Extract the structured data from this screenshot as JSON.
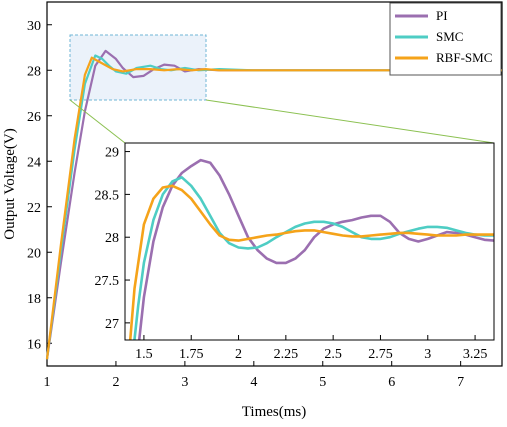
{
  "chart_data": {
    "type": "line",
    "xlabel": "Times(ms)",
    "ylabel": "Output Voltage(V)",
    "xlim": [
      1,
      7.6
    ],
    "ylim": [
      15,
      31
    ],
    "xticks": [
      "1",
      "2",
      "3",
      "4",
      "5",
      "6",
      "7"
    ],
    "yticks": [
      "16",
      "18",
      "20",
      "22",
      "24",
      "26",
      "28",
      "30"
    ],
    "legend_position": "top-right",
    "grid": false,
    "series": [
      {
        "name": "PI",
        "color": "#9b6fb0",
        "x": [
          1.0,
          1.2,
          1.4,
          1.55,
          1.7,
          1.85,
          2.0,
          2.1,
          2.25,
          2.4,
          2.55,
          2.7,
          2.85,
          3.0,
          3.2,
          3.5,
          4.0,
          5.0,
          6.0,
          7.0,
          7.6
        ],
        "y": [
          15.3,
          19.5,
          23.5,
          26.2,
          28.2,
          28.85,
          28.5,
          28.1,
          27.7,
          27.75,
          28.05,
          28.25,
          28.2,
          27.95,
          28.05,
          28.0,
          28.0,
          28.0,
          28.0,
          28.0,
          28.0
        ]
      },
      {
        "name": "SMC",
        "color": "#4ecdc4",
        "x": [
          1.0,
          1.2,
          1.4,
          1.55,
          1.7,
          1.8,
          1.9,
          2.0,
          2.15,
          2.3,
          2.5,
          2.65,
          2.8,
          3.0,
          3.2,
          3.5,
          4.0,
          5.0,
          6.0,
          7.0,
          7.6
        ],
        "y": [
          15.3,
          20.0,
          24.5,
          27.4,
          28.65,
          28.5,
          28.2,
          27.95,
          27.85,
          28.1,
          28.2,
          28.05,
          28.0,
          28.1,
          28.0,
          28.05,
          28.0,
          28.0,
          28.0,
          28.0,
          28.0
        ]
      },
      {
        "name": "RBF-SMC",
        "color": "#f5a31a",
        "x": [
          1.0,
          1.2,
          1.4,
          1.55,
          1.65,
          1.8,
          1.95,
          2.1,
          2.3,
          2.5,
          2.7,
          2.9,
          3.1,
          3.3,
          3.5,
          4.0,
          5.0,
          6.0,
          7.0,
          7.6
        ],
        "y": [
          15.3,
          20.3,
          25.0,
          27.8,
          28.55,
          28.3,
          28.05,
          27.95,
          28.05,
          28.05,
          28.0,
          28.05,
          28.0,
          28.05,
          28.0,
          28.0,
          28.0,
          28.0,
          28.0,
          28.0
        ]
      }
    ],
    "inset": {
      "xlim": [
        1.4,
        3.35
      ],
      "ylim": [
        26.8,
        29.1
      ],
      "xticks": [
        "1.5",
        "1.75",
        "2",
        "2.25",
        "2.5",
        "2.75",
        "3",
        "3.25"
      ],
      "yticks": [
        "27",
        "27.5",
        "28",
        "28.5",
        "29"
      ],
      "series": [
        {
          "name": "PI",
          "x": [
            1.45,
            1.5,
            1.55,
            1.6,
            1.65,
            1.7,
            1.75,
            1.8,
            1.85,
            1.9,
            1.95,
            2.0,
            2.05,
            2.1,
            2.15,
            2.2,
            2.25,
            2.3,
            2.35,
            2.4,
            2.45,
            2.5,
            2.55,
            2.6,
            2.65,
            2.7,
            2.75,
            2.8,
            2.85,
            2.9,
            2.95,
            3.0,
            3.05,
            3.1,
            3.15,
            3.2,
            3.25,
            3.3,
            3.35
          ],
          "y": [
            26.3,
            27.3,
            27.95,
            28.35,
            28.6,
            28.75,
            28.83,
            28.9,
            28.87,
            28.72,
            28.5,
            28.25,
            28.0,
            27.85,
            27.75,
            27.7,
            27.7,
            27.75,
            27.85,
            28.0,
            28.1,
            28.15,
            28.18,
            28.2,
            28.23,
            28.25,
            28.25,
            28.18,
            28.05,
            27.98,
            27.95,
            27.98,
            28.02,
            28.06,
            28.05,
            28.03,
            28.0,
            27.97,
            27.96
          ]
        },
        {
          "name": "SMC",
          "x": [
            1.43,
            1.47,
            1.5,
            1.55,
            1.6,
            1.65,
            1.7,
            1.75,
            1.8,
            1.85,
            1.9,
            1.95,
            2.0,
            2.05,
            2.1,
            2.15,
            2.2,
            2.25,
            2.3,
            2.35,
            2.4,
            2.45,
            2.5,
            2.55,
            2.6,
            2.65,
            2.7,
            2.75,
            2.8,
            2.85,
            2.9,
            2.95,
            3.0,
            3.05,
            3.1,
            3.15,
            3.2,
            3.25,
            3.3,
            3.35
          ],
          "y": [
            26.4,
            27.2,
            27.7,
            28.2,
            28.5,
            28.65,
            28.7,
            28.6,
            28.45,
            28.25,
            28.05,
            27.93,
            27.88,
            27.87,
            27.88,
            27.93,
            28.0,
            28.06,
            28.12,
            28.16,
            28.18,
            28.18,
            28.16,
            28.12,
            28.06,
            28.0,
            27.98,
            27.98,
            28.0,
            28.04,
            28.07,
            28.1,
            28.12,
            28.12,
            28.11,
            28.08,
            28.05,
            28.03,
            28.02,
            28.02
          ]
        },
        {
          "name": "RBF-SMC",
          "x": [
            1.42,
            1.45,
            1.5,
            1.55,
            1.6,
            1.65,
            1.7,
            1.75,
            1.8,
            1.85,
            1.9,
            1.95,
            2.0,
            2.05,
            2.1,
            2.15,
            2.2,
            2.25,
            2.3,
            2.35,
            2.4,
            2.45,
            2.5,
            2.55,
            2.6,
            2.65,
            2.7,
            2.75,
            2.8,
            2.85,
            2.9,
            2.95,
            3.0,
            3.05,
            3.1,
            3.15,
            3.2,
            3.25,
            3.3,
            3.35
          ],
          "y": [
            26.6,
            27.4,
            28.15,
            28.45,
            28.58,
            28.6,
            28.55,
            28.45,
            28.3,
            28.15,
            28.02,
            27.97,
            27.96,
            27.98,
            28.0,
            28.02,
            28.03,
            28.05,
            28.07,
            28.08,
            28.08,
            28.06,
            28.04,
            28.02,
            28.01,
            28.01,
            28.02,
            28.03,
            28.04,
            28.05,
            28.05,
            28.04,
            28.03,
            28.02,
            28.02,
            28.02,
            28.03,
            28.03,
            28.03,
            28.03
          ]
        }
      ]
    }
  }
}
